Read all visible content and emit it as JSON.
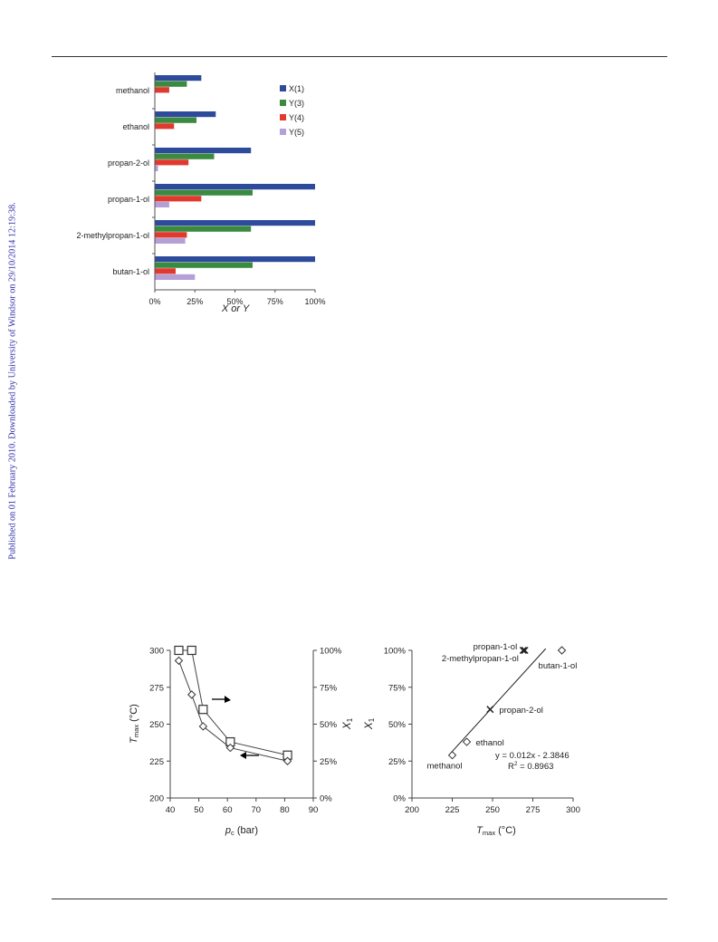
{
  "sidebar_text": "Published on 01 February 2010. Downloaded by University of Windsor on 29/10/2014 12:19:38.",
  "colors": {
    "X1": "#2e4a9b",
    "Y3": "#3a8a3f",
    "Y4": "#e03a2f",
    "Y5": "#b5a0d6"
  },
  "chart_data": [
    {
      "type": "bar",
      "orientation": "horizontal",
      "categories": [
        "methanol",
        "ethanol",
        "propan-2-ol",
        "propan-1-ol",
        "2-methylpropan-1-ol",
        "butan-1-ol"
      ],
      "series": [
        {
          "name": "X(1)",
          "color": "#2e4a9b",
          "values": [
            29,
            38,
            60,
            100,
            100,
            100
          ]
        },
        {
          "name": "Y(3)",
          "color": "#3a8a3f",
          "values": [
            20,
            26,
            37,
            61,
            60,
            61
          ]
        },
        {
          "name": "Y(4)",
          "color": "#e03a2f",
          "values": [
            9,
            12,
            21,
            29,
            20,
            13
          ]
        },
        {
          "name": "Y(5)",
          "color": "#b5a0d6",
          "values": [
            0,
            0,
            2,
            9,
            19,
            25
          ]
        }
      ],
      "xticks": [
        "0%",
        "25%",
        "50%",
        "75%",
        "100%"
      ],
      "xlim": [
        0,
        100
      ],
      "xlabel": "X or Y",
      "legend": "top-right"
    },
    {
      "type": "line",
      "xlabel": "p",
      "xlabel_sub": "c",
      "xlabel_unit": " (bar)",
      "ylabel": "T",
      "ylabel_sub": "max",
      "ylabel_unit": " (°C)",
      "y2label": "X",
      "y2label_sub": "1",
      "xlim": [
        40,
        90
      ],
      "ylim": [
        200,
        300
      ],
      "y2lim": [
        0,
        100
      ],
      "xticks": [
        "40",
        "50",
        "60",
        "70",
        "80",
        "90"
      ],
      "yticks": [
        "200",
        "225",
        "250",
        "275",
        "300"
      ],
      "y2ticks": [
        "0%",
        "25%",
        "50%",
        "75%",
        "100%"
      ],
      "series": [
        {
          "marker": "square",
          "axis": "right",
          "x": [
            43,
            47.5,
            51.5,
            61,
            81
          ],
          "y": [
            100,
            100,
            60,
            38,
            29
          ]
        },
        {
          "marker": "diamond",
          "axis": "left",
          "x": [
            43,
            47.5,
            51.5,
            61,
            81
          ],
          "y": [
            293,
            270,
            248.5,
            234,
            225
          ]
        }
      ]
    },
    {
      "type": "scatter",
      "xlabel": "T",
      "xlabel_sub": "max",
      "xlabel_unit": " (°C)",
      "ylabel": "X",
      "ylabel_sub": "1",
      "xlim": [
        200,
        300
      ],
      "ylim": [
        0,
        100
      ],
      "xticks": [
        "200",
        "225",
        "250",
        "275",
        "300"
      ],
      "yticks": [
        "0%",
        "25%",
        "50%",
        "75%",
        "100%"
      ],
      "points": [
        {
          "label": "methanol",
          "marker": "diamond",
          "x": 225,
          "y": 29
        },
        {
          "label": "ethanol",
          "marker": "diamond",
          "x": 234,
          "y": 38
        },
        {
          "label": "propan-2-ol",
          "marker": "cross",
          "x": 248.5,
          "y": 60
        },
        {
          "label": "propan-1-ol",
          "marker": "cross",
          "x": 270,
          "y": 100
        },
        {
          "label": "2-methylpropan-1-ol",
          "marker": "cross",
          "x": 269,
          "y": 100
        },
        {
          "label": "butan-1-ol",
          "marker": "diamond",
          "x": 293,
          "y": 100
        }
      ],
      "trendline": {
        "slope": 0.012,
        "intercept": -2.3846,
        "x_range": [
          224,
          283
        ]
      },
      "equation": "y = 0.012x - 2.3846",
      "r2_label": "R",
      "r2_value": " = 0.8963"
    }
  ]
}
